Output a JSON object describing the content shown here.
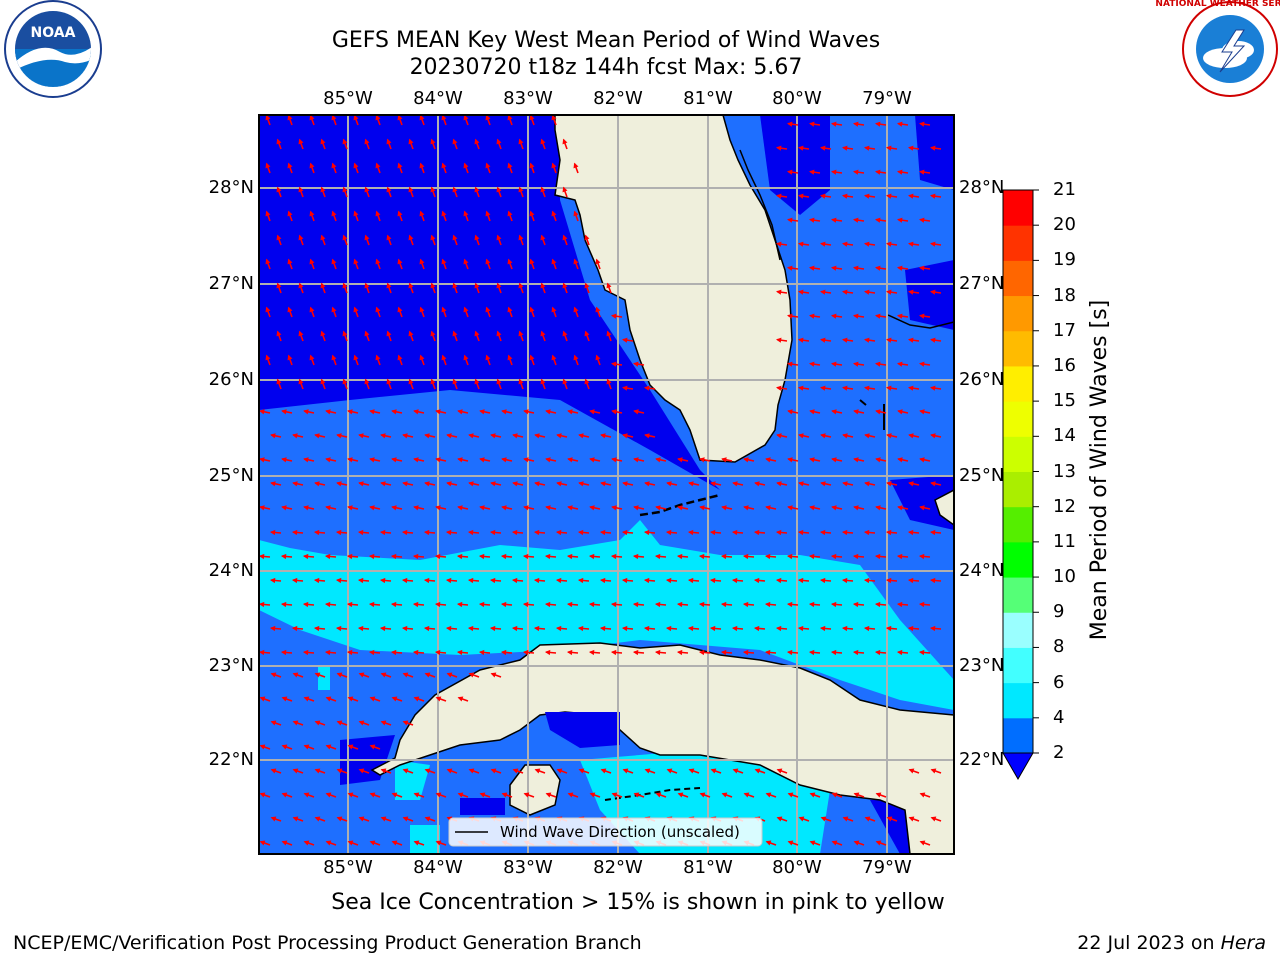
{
  "header": {
    "title_line1": "GEFS MEAN Key West Mean Period of Wind Waves",
    "title_line2": "20230720 t18z 144h fcst   Max: 5.67"
  },
  "logos": {
    "left": "NOAA",
    "right": "NATIONAL WEATHER SERVICE"
  },
  "map": {
    "lon_labels": [
      "85°W",
      "84°W",
      "83°W",
      "82°W",
      "81°W",
      "80°W",
      "79°W"
    ],
    "lat_labels": [
      "28°N",
      "27°N",
      "26°N",
      "25°N",
      "24°N",
      "23°N",
      "22°N"
    ],
    "legend_label": "Wind Wave Direction (unscaled)",
    "colors": {
      "dark_blue": "#0000ee",
      "mid_blue": "#1e6fff",
      "cyan": "#00ffff",
      "land": "#efefdc",
      "arrow": "#ff0000",
      "grid": "#b0b0b0"
    }
  },
  "colorbar": {
    "label": "Mean Period of Wind Waves [s]",
    "ticks": [
      "2",
      "4",
      "6",
      "8",
      "9",
      "10",
      "11",
      "12",
      "13",
      "14",
      "15",
      "16",
      "17",
      "18",
      "19",
      "20",
      "21"
    ],
    "colors": [
      "#0000ff",
      "#006eff",
      "#00e8ff",
      "#42ffff",
      "#9affff",
      "#55ff77",
      "#00ff00",
      "#55ee00",
      "#aaee00",
      "#ccff00",
      "#eeff00",
      "#ffee00",
      "#ffbb00",
      "#ff9900",
      "#ff6600",
      "#ff3300",
      "#ff0000"
    ]
  },
  "footer": {
    "ice_note": "Sea Ice Concentration > 15% is shown in pink to yellow",
    "left": "NCEP/EMC/Verification Post Processing Product Generation Branch",
    "right_date": "22 Jul 2023 on ",
    "right_host": "Hera"
  }
}
